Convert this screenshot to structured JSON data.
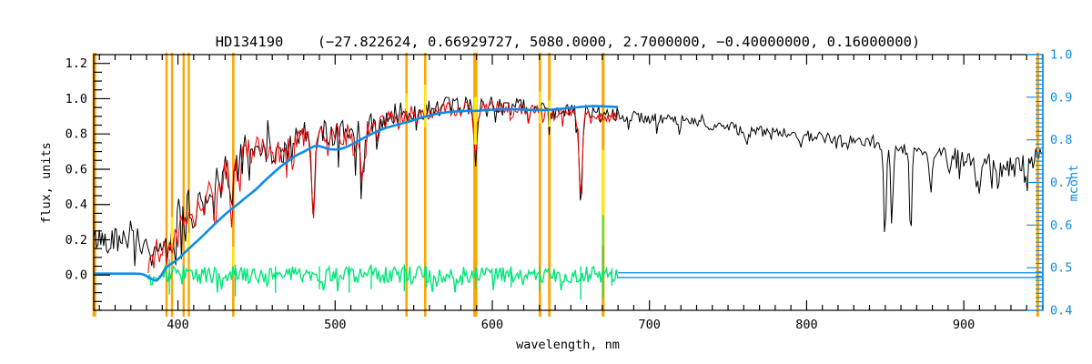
{
  "window": {
    "background": "#ffffff"
  },
  "chart_data": {
    "type": "line",
    "title": "HD134190    (−27.822624, 0.66929727, 5080.0000, 2.7000000, −0.40000000, 0.16000000)",
    "star_id": "HD134190",
    "fit_parameters": [
      "-27.822624",
      "0.66929727",
      "5080.0000",
      "2.7000000",
      "-0.40000000",
      "0.16000000"
    ],
    "xlabel": "wavelength, nm",
    "ylabel_left": "flux, units",
    "ylabel_right": "mcont",
    "x_range": [
      346.4,
      950.3
    ],
    "y_left_range": [
      -0.2,
      1.25
    ],
    "y_right_range": [
      0.4,
      1.0
    ],
    "x_major_ticks": [
      400,
      500,
      600,
      700,
      800,
      900
    ],
    "x_tick_labels": [
      "400",
      "500",
      "600",
      "700",
      "800",
      "900"
    ],
    "x_minor_step": 10,
    "y_left_major_ticks": [
      0.0,
      0.2,
      0.4,
      0.6,
      0.8,
      1.0,
      1.2
    ],
    "y_left_tick_labels": [
      "0.0",
      "0.2",
      "0.4",
      "0.6",
      "0.8",
      "1.0",
      "1.2"
    ],
    "y_left_minor_step": 0.05,
    "y_right_major_ticks": [
      0.4,
      0.5,
      0.6,
      0.7,
      0.8,
      0.9,
      1.0
    ],
    "y_right_tick_labels": [
      "0.4",
      "0.5",
      "0.6",
      "0.7",
      "0.8",
      "0.9",
      "1.0"
    ],
    "y_right_minor_step": 0.01,
    "grid": false,
    "legend": "none",
    "colors": {
      "observed": "#000000",
      "model": "#ee0000",
      "residual": "#00e679",
      "continuum": "#0d8ce8",
      "marker": "#ffa500",
      "masked": "#ffee00",
      "axis": "#000000",
      "right_axis": "#0d8ce8"
    },
    "series": [
      {
        "name": "observed_spectrum",
        "color_key": "observed",
        "x_start": 346.4,
        "x_end": 950.2,
        "seed": 42,
        "envelope": [
          [
            346,
            0.2,
            0.07
          ],
          [
            355,
            0.21,
            0.07
          ],
          [
            365,
            0.22,
            0.07
          ],
          [
            373,
            0.19,
            0.06
          ],
          [
            378,
            0.14,
            0.04
          ],
          [
            381,
            0.17,
            0.07
          ],
          [
            384,
            0.22,
            0.09
          ],
          [
            388,
            0.26,
            0.09
          ],
          [
            392,
            0.29,
            0.1
          ],
          [
            396,
            0.32,
            0.1
          ],
          [
            400,
            0.35,
            0.1
          ],
          [
            404,
            0.37,
            0.1
          ],
          [
            408,
            0.4,
            0.1
          ],
          [
            413,
            0.44,
            0.1
          ],
          [
            418,
            0.5,
            0.1
          ],
          [
            424,
            0.57,
            0.1
          ],
          [
            429,
            0.61,
            0.09
          ],
          [
            434,
            0.62,
            0.1
          ],
          [
            438,
            0.68,
            0.09
          ],
          [
            444,
            0.72,
            0.09
          ],
          [
            450,
            0.74,
            0.08
          ],
          [
            456,
            0.73,
            0.09
          ],
          [
            462,
            0.71,
            0.09
          ],
          [
            468,
            0.72,
            0.09
          ],
          [
            474,
            0.76,
            0.08
          ],
          [
            480,
            0.79,
            0.08
          ],
          [
            486,
            0.78,
            0.09
          ],
          [
            492,
            0.81,
            0.08
          ],
          [
            498,
            0.81,
            0.08
          ],
          [
            504,
            0.8,
            0.09
          ],
          [
            510,
            0.82,
            0.08
          ],
          [
            516,
            0.8,
            0.09
          ],
          [
            522,
            0.85,
            0.07
          ],
          [
            528,
            0.88,
            0.06
          ],
          [
            534,
            0.9,
            0.06
          ],
          [
            540,
            0.92,
            0.06
          ],
          [
            546,
            0.93,
            0.06
          ],
          [
            552,
            0.94,
            0.05
          ],
          [
            558,
            0.94,
            0.06
          ],
          [
            564,
            0.95,
            0.05
          ],
          [
            570,
            0.96,
            0.05
          ],
          [
            576,
            0.96,
            0.05
          ],
          [
            582,
            0.96,
            0.05
          ],
          [
            588,
            0.96,
            0.05
          ],
          [
            594,
            0.97,
            0.05
          ],
          [
            600,
            0.98,
            0.04
          ],
          [
            606,
            0.97,
            0.04
          ],
          [
            612,
            0.97,
            0.04
          ],
          [
            618,
            0.96,
            0.04
          ],
          [
            624,
            0.95,
            0.04
          ],
          [
            630,
            0.94,
            0.05
          ],
          [
            636,
            0.93,
            0.05
          ],
          [
            642,
            0.93,
            0.04
          ],
          [
            648,
            0.93,
            0.04
          ],
          [
            654,
            0.93,
            0.04
          ],
          [
            660,
            0.93,
            0.04
          ],
          [
            666,
            0.92,
            0.04
          ],
          [
            672,
            0.92,
            0.04
          ],
          [
            680,
            0.91,
            0.04
          ],
          [
            690,
            0.9,
            0.03
          ],
          [
            700,
            0.89,
            0.03
          ],
          [
            710,
            0.88,
            0.03
          ],
          [
            720,
            0.87,
            0.03
          ],
          [
            730,
            0.86,
            0.03
          ],
          [
            740,
            0.85,
            0.03
          ],
          [
            750,
            0.84,
            0.03
          ],
          [
            762,
            0.82,
            0.04
          ],
          [
            775,
            0.81,
            0.03
          ],
          [
            790,
            0.8,
            0.03
          ],
          [
            800,
            0.79,
            0.03
          ],
          [
            810,
            0.78,
            0.03
          ],
          [
            820,
            0.77,
            0.03
          ],
          [
            830,
            0.76,
            0.03
          ],
          [
            840,
            0.75,
            0.03
          ],
          [
            848,
            0.74,
            0.03
          ],
          [
            856,
            0.73,
            0.04
          ],
          [
            865,
            0.72,
            0.04
          ],
          [
            875,
            0.71,
            0.04
          ],
          [
            885,
            0.69,
            0.04
          ],
          [
            895,
            0.67,
            0.05
          ],
          [
            905,
            0.65,
            0.05
          ],
          [
            915,
            0.63,
            0.06
          ],
          [
            925,
            0.61,
            0.07
          ],
          [
            933,
            0.6,
            0.07
          ],
          [
            940,
            0.62,
            0.07
          ],
          [
            946,
            0.66,
            0.06
          ],
          [
            950,
            0.68,
            0.05
          ]
        ]
      },
      {
        "name": "model_spectrum",
        "color_key": "model",
        "x_start": 381,
        "x_end": 680,
        "seed": 77,
        "offset": -0.018,
        "amp_scale": 0.82,
        "feature_scale": 0.85
      },
      {
        "name": "residual",
        "color_key": "residual",
        "x_start": 381,
        "x_end": 680,
        "seed": 99,
        "center": 0.0,
        "amp": [
          [
            381,
            0.055
          ],
          [
            395,
            0.06
          ],
          [
            410,
            0.05
          ],
          [
            440,
            0.05
          ],
          [
            470,
            0.05
          ],
          [
            500,
            0.046
          ],
          [
            530,
            0.05
          ],
          [
            560,
            0.052
          ],
          [
            590,
            0.045
          ],
          [
            620,
            0.045
          ],
          [
            645,
            0.04
          ],
          [
            662,
            0.05
          ],
          [
            672,
            0.04
          ],
          [
            680,
            0.03
          ]
        ],
        "spikes": [
          [
            394.5,
            -0.11,
            0.09
          ],
          [
            436.5,
            -0.12,
            0.06
          ],
          [
            462,
            -0.1,
            0.05
          ],
          [
            490,
            -0.08,
            0.05
          ],
          [
            509,
            -0.1,
            0.05
          ],
          [
            523,
            -0.08,
            0.06
          ],
          [
            544,
            -0.09,
            0.06
          ],
          [
            558,
            -0.07,
            0.05
          ],
          [
            589.5,
            -0.08,
            0.04
          ],
          [
            612,
            -0.07,
            0.05
          ],
          [
            630,
            -0.09,
            0.05
          ],
          [
            656.3,
            -0.14,
            0.05
          ],
          [
            670.5,
            -0.13,
            0.34
          ],
          [
            676,
            -0.06,
            0.04
          ]
        ]
      },
      {
        "name": "continuum_mcont",
        "color_key": "continuum",
        "axis": "right",
        "points": [
          [
            346.4,
            0.486
          ],
          [
            372,
            0.486
          ],
          [
            378,
            0.484
          ],
          [
            382,
            0.476
          ],
          [
            386,
            0.47
          ],
          [
            389,
            0.48
          ],
          [
            392,
            0.498
          ],
          [
            396,
            0.51
          ],
          [
            400,
            0.52
          ],
          [
            405,
            0.538
          ],
          [
            410,
            0.555
          ],
          [
            415,
            0.572
          ],
          [
            420,
            0.59
          ],
          [
            425,
            0.608
          ],
          [
            430,
            0.625
          ],
          [
            435,
            0.64
          ],
          [
            440,
            0.655
          ],
          [
            445,
            0.67
          ],
          [
            450,
            0.685
          ],
          [
            455,
            0.703
          ],
          [
            460,
            0.72
          ],
          [
            465,
            0.736
          ],
          [
            470,
            0.75
          ],
          [
            475,
            0.763
          ],
          [
            480,
            0.772
          ],
          [
            484,
            0.78
          ],
          [
            488,
            0.786
          ],
          [
            492,
            0.783
          ],
          [
            497,
            0.778
          ],
          [
            502,
            0.778
          ],
          [
            507,
            0.783
          ],
          [
            512,
            0.792
          ],
          [
            518,
            0.804
          ],
          [
            524,
            0.815
          ],
          [
            530,
            0.825
          ],
          [
            536,
            0.832
          ],
          [
            542,
            0.838
          ],
          [
            548,
            0.844
          ],
          [
            554,
            0.851
          ],
          [
            560,
            0.857
          ],
          [
            566,
            0.862
          ],
          [
            572,
            0.865
          ],
          [
            578,
            0.867
          ],
          [
            584,
            0.868
          ],
          [
            590,
            0.868
          ],
          [
            596,
            0.87
          ],
          [
            602,
            0.871
          ],
          [
            608,
            0.872
          ],
          [
            614,
            0.872
          ],
          [
            620,
            0.871
          ],
          [
            626,
            0.87
          ],
          [
            632,
            0.87
          ],
          [
            638,
            0.871
          ],
          [
            644,
            0.873
          ],
          [
            650,
            0.875
          ],
          [
            656,
            0.877
          ],
          [
            662,
            0.879
          ],
          [
            668,
            0.879
          ],
          [
            674,
            0.878
          ],
          [
            680,
            0.877
          ]
        ]
      },
      {
        "name": "baseline_lines",
        "color_key": "continuum",
        "axis": "right",
        "x_start": 680,
        "x_end": 950.3,
        "values": [
          0.488,
          0.477
        ]
      }
    ],
    "absorption_features": [
      [
        383.0,
        0.14,
        1.1
      ],
      [
        385.2,
        0.12,
        0.9
      ],
      [
        388.9,
        0.16,
        1.0
      ],
      [
        393.4,
        0.2,
        1.1
      ],
      [
        396.8,
        0.18,
        1.1
      ],
      [
        404.6,
        0.1,
        0.8
      ],
      [
        410.2,
        0.18,
        1.0
      ],
      [
        417,
        0.1,
        0.8
      ],
      [
        422.7,
        0.24,
        1.0
      ],
      [
        427,
        0.12,
        0.8
      ],
      [
        434.0,
        0.3,
        1.1
      ],
      [
        438.3,
        0.12,
        0.8
      ],
      [
        448,
        0.1,
        0.7
      ],
      [
        462,
        0.1,
        0.7
      ],
      [
        473,
        0.09,
        0.7
      ],
      [
        486.1,
        0.45,
        1.0
      ],
      [
        495.7,
        0.1,
        0.7
      ],
      [
        512,
        0.1,
        0.7
      ],
      [
        517.3,
        0.28,
        1.1
      ],
      [
        526.9,
        0.14,
        0.8
      ],
      [
        540,
        0.08,
        0.6
      ],
      [
        552,
        0.07,
        0.6
      ],
      [
        589.3,
        0.33,
        1.0
      ],
      [
        597,
        0.06,
        0.6
      ],
      [
        612,
        0.08,
        0.6
      ],
      [
        623,
        0.07,
        0.6
      ],
      [
        645,
        0.06,
        0.5
      ],
      [
        656.3,
        0.57,
        1.0
      ],
      [
        663,
        0.05,
        0.5
      ],
      [
        687,
        0.06,
        0.6
      ],
      [
        719,
        0.07,
        0.6
      ],
      [
        761.5,
        0.09,
        0.8
      ],
      [
        795,
        0.06,
        0.6
      ],
      [
        819,
        0.07,
        0.6
      ],
      [
        849.8,
        0.53,
        0.8
      ],
      [
        854.2,
        0.42,
        0.8
      ],
      [
        866.2,
        0.51,
        0.8
      ],
      [
        879,
        0.27,
        0.8
      ],
      [
        891,
        0.12,
        0.7
      ],
      [
        908,
        0.16,
        0.8
      ],
      [
        922,
        0.1,
        0.7
      ]
    ],
    "marker_lines": {
      "color": "#ffa500",
      "lines": [
        [
          346.8,
          4.0
        ],
        [
          392.7,
          2.4
        ],
        [
          396.2,
          2.4
        ],
        [
          403.6,
          2.4
        ],
        [
          406.9,
          2.4
        ],
        [
          435.2,
          2.6
        ],
        [
          545.4,
          2.6
        ],
        [
          557.3,
          2.6
        ],
        [
          589.2,
          4.6
        ],
        [
          630.3,
          2.8
        ],
        [
          636.3,
          2.8
        ],
        [
          670.5,
          3.2
        ],
        [
          947.0,
          3.0
        ]
      ]
    },
    "masked_segments": {
      "color": "#ffee00",
      "segments": [
        [
          396.2,
          0.18,
          0.33,
          2.2
        ],
        [
          406.9,
          0.14,
          0.24,
          2.2
        ],
        [
          435.2,
          0.04,
          0.16,
          2.2
        ],
        [
          545.4,
          0.93,
          1.03,
          2.2
        ],
        [
          557.3,
          0.84,
          1.08,
          2.2
        ],
        [
          589.2,
          0.74,
          1.01,
          3.2
        ],
        [
          630.3,
          0.86,
          1.04,
          2.2
        ],
        [
          636.3,
          0.84,
          0.99,
          2.2
        ],
        [
          670.5,
          0.17,
          0.71,
          2.6
        ]
      ]
    }
  }
}
